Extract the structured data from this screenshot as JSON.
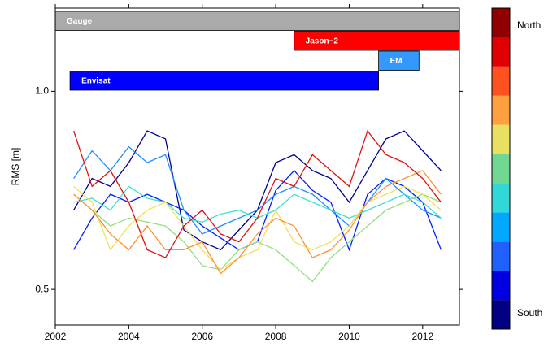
{
  "chart_data": {
    "type": "line",
    "ylabel": "RMS [m]",
    "xlim": [
      2002,
      2013
    ],
    "ylim": [
      0.41,
      1.21
    ],
    "xticks": [
      2002,
      2004,
      2006,
      2008,
      2010,
      2012
    ],
    "yticks": [
      0.5,
      {
        "value": 1,
        "label": "1.0"
      }
    ],
    "x": [
      2002.5,
      2003,
      2003.5,
      2004,
      2004.5,
      2005,
      2005.5,
      2006,
      2006.5,
      2007,
      2007.5,
      2008,
      2008.5,
      2009,
      2009.5,
      2010,
      2010.5,
      2011,
      2011.5,
      2012,
      2012.5
    ],
    "series": [
      {
        "color": "#000090",
        "values": [
          0.7,
          0.78,
          0.76,
          0.82,
          0.9,
          0.88,
          0.65,
          0.62,
          0.6,
          0.65,
          0.7,
          0.82,
          0.84,
          0.8,
          0.78,
          0.72,
          0.8,
          0.88,
          0.9,
          0.85,
          0.8
        ]
      },
      {
        "color": "#0020ff",
        "values": [
          0.6,
          0.68,
          0.74,
          0.72,
          0.74,
          0.72,
          0.7,
          0.66,
          0.63,
          0.6,
          0.62,
          0.75,
          0.8,
          0.75,
          0.72,
          0.6,
          0.74,
          0.78,
          0.76,
          0.72,
          0.6
        ]
      },
      {
        "color": "#1e90ff",
        "values": [
          0.78,
          0.85,
          0.8,
          0.86,
          0.82,
          0.84,
          0.7,
          0.64,
          0.66,
          0.68,
          0.7,
          0.74,
          0.76,
          0.74,
          0.7,
          0.66,
          0.72,
          0.78,
          0.74,
          0.7,
          0.68
        ]
      },
      {
        "color": "#40e0d0",
        "values": [
          0.72,
          0.73,
          0.7,
          0.76,
          0.73,
          0.72,
          0.68,
          0.67,
          0.69,
          0.7,
          0.68,
          0.7,
          0.74,
          0.72,
          0.7,
          0.68,
          0.7,
          0.72,
          0.74,
          0.72,
          0.68
        ]
      },
      {
        "color": "#90e080",
        "values": [
          0.74,
          0.7,
          0.66,
          0.68,
          0.67,
          0.66,
          0.62,
          0.56,
          0.55,
          0.6,
          0.62,
          0.6,
          0.56,
          0.52,
          0.58,
          0.62,
          0.66,
          0.7,
          0.72,
          0.74,
          0.72
        ]
      },
      {
        "color": "#f0e060",
        "values": [
          0.76,
          0.72,
          0.6,
          0.66,
          0.7,
          0.72,
          0.66,
          0.6,
          0.55,
          0.58,
          0.6,
          0.7,
          0.62,
          0.6,
          0.62,
          0.66,
          0.72,
          0.74,
          0.76,
          0.74,
          0.7
        ]
      },
      {
        "color": "#ff9030",
        "values": [
          0.74,
          0.7,
          0.64,
          0.6,
          0.66,
          0.6,
          0.6,
          0.62,
          0.54,
          0.58,
          0.64,
          0.68,
          0.66,
          0.58,
          0.6,
          0.65,
          0.72,
          0.76,
          0.78,
          0.8,
          0.74
        ]
      },
      {
        "color": "#e01010",
        "values": [
          0.9,
          0.76,
          0.8,
          0.72,
          0.6,
          0.58,
          0.66,
          0.7,
          0.64,
          0.62,
          0.68,
          0.78,
          0.76,
          0.84,
          0.8,
          0.76,
          0.9,
          0.84,
          0.82,
          0.78,
          0.72
        ]
      }
    ],
    "missions": [
      {
        "name": "Gauge",
        "start": 2002,
        "end": 2013,
        "color": "#aaaaaa"
      },
      {
        "name": "Jason−2",
        "start": 2008.5,
        "end": 2013,
        "color": "#ff0000"
      },
      {
        "name": "EM",
        "start": 2010.8,
        "end": 2011.9,
        "color": "#3399ff"
      },
      {
        "name": "Envisat",
        "start": 2002.4,
        "end": 2010.8,
        "color": "#0000ff"
      }
    ],
    "colorbar": {
      "colors": [
        "#000080",
        "#0000e0",
        "#2060ff",
        "#00a8ff",
        "#30d8d8",
        "#70d890",
        "#e8e060",
        "#ffa040",
        "#ff5020",
        "#e00000",
        "#900000"
      ],
      "top_label": "North",
      "bottom_label": "South"
    }
  }
}
